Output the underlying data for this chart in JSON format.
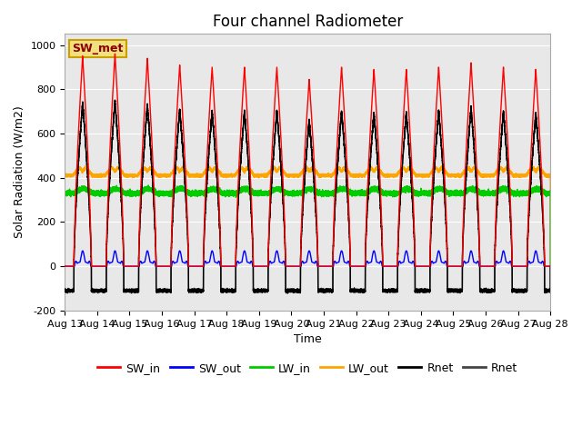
{
  "title": "Four channel Radiometer",
  "xlabel": "Time",
  "ylabel": "Solar Radiation (W/m2)",
  "ylim": [
    -200,
    1050
  ],
  "background_color": "#e8e8e8",
  "fig_background": "#ffffff",
  "legend_label": "SW_met",
  "series": {
    "SW_in": {
      "color": "#ff0000",
      "lw": 1.0
    },
    "SW_out": {
      "color": "#0000ff",
      "lw": 1.0
    },
    "LW_in": {
      "color": "#00cc00",
      "lw": 1.0
    },
    "LW_out": {
      "color": "#ffa500",
      "lw": 1.0
    },
    "Rnet_black": {
      "color": "#000000",
      "lw": 1.0
    },
    "Rnet_dark": {
      "color": "#444444",
      "lw": 1.0
    }
  },
  "yticks": [
    -200,
    0,
    200,
    400,
    600,
    800,
    1000
  ],
  "sw_in_peaks": [
    950,
    960,
    940,
    910,
    900,
    900,
    900,
    845,
    900,
    890,
    890,
    900,
    920,
    900,
    890
  ],
  "title_fontsize": 12,
  "axis_fontsize": 9,
  "tick_fontsize": 8,
  "legend_fontsize": 9,
  "day_start": 13,
  "n_days": 15
}
